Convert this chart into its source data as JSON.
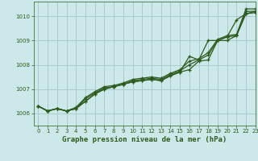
{
  "xlabel": "Graphe pression niveau de la mer (hPa)",
  "background_color": "#cce8e8",
  "grid_color": "#aacccc",
  "line_color": "#2d5a1e",
  "xlim": [
    -0.5,
    23
  ],
  "ylim": [
    1005.5,
    1010.6
  ],
  "yticks": [
    1006,
    1007,
    1008,
    1009,
    1010
  ],
  "xticks": [
    0,
    1,
    2,
    3,
    4,
    5,
    6,
    7,
    8,
    9,
    10,
    11,
    12,
    13,
    14,
    15,
    16,
    17,
    18,
    19,
    20,
    21,
    22,
    23
  ],
  "series": [
    [
      1006.3,
      1006.1,
      1006.2,
      1006.1,
      1006.2,
      1006.5,
      1006.8,
      1007.0,
      1007.1,
      1007.2,
      1007.3,
      1007.35,
      1007.4,
      1007.35,
      1007.55,
      1007.7,
      1007.8,
      1008.15,
      1008.2,
      1009.0,
      1009.0,
      1009.2,
      1010.1,
      1010.2
    ],
    [
      1006.3,
      1006.1,
      1006.2,
      1006.1,
      1006.2,
      1006.5,
      1006.8,
      1007.0,
      1007.1,
      1007.2,
      1007.3,
      1007.35,
      1007.4,
      1007.35,
      1007.55,
      1007.7,
      1008.35,
      1008.2,
      1009.0,
      1009.0,
      1009.15,
      1009.85,
      1010.1,
      1010.15
    ],
    [
      1006.3,
      1006.1,
      1006.2,
      1006.1,
      1006.2,
      1006.6,
      1006.85,
      1007.05,
      1007.1,
      1007.2,
      1007.35,
      1007.4,
      1007.45,
      1007.4,
      1007.6,
      1007.75,
      1008.0,
      1008.2,
      1008.4,
      1009.0,
      1009.15,
      1009.2,
      1010.2,
      1010.2
    ],
    [
      1006.3,
      1006.1,
      1006.2,
      1006.1,
      1006.25,
      1006.65,
      1006.9,
      1007.1,
      1007.15,
      1007.25,
      1007.4,
      1007.45,
      1007.5,
      1007.45,
      1007.65,
      1007.8,
      1008.15,
      1008.25,
      1008.5,
      1009.05,
      1009.2,
      1009.25,
      1010.3,
      1010.3
    ]
  ]
}
